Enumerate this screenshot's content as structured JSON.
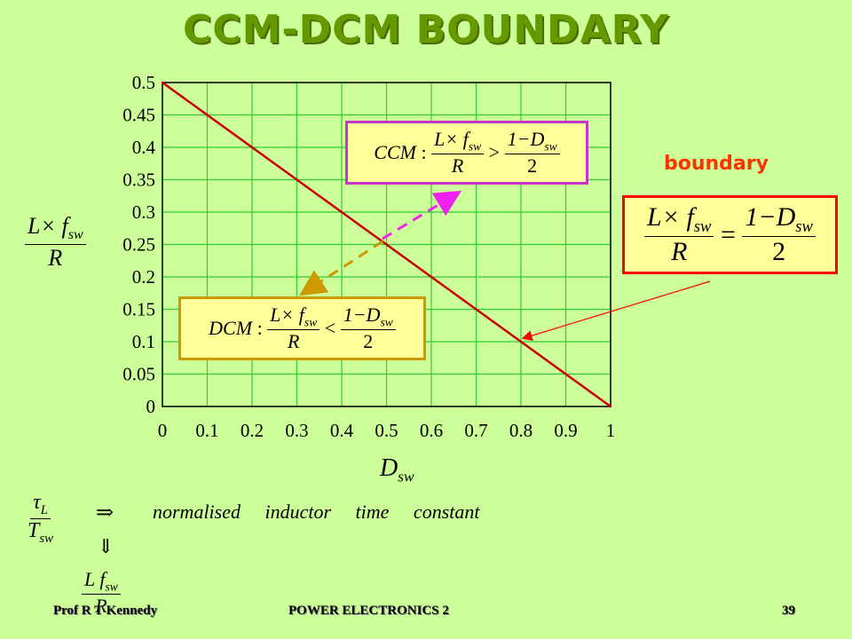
{
  "slide": {
    "title": "CCM-DCM BOUNDARY",
    "boundary_label": "boundary",
    "ccm_text": "CCM",
    "dcm_text": "DCM",
    "lhs_num": "L× f",
    "lhs_sub": "sw",
    "lhs_den": "R",
    "rhs_num": "1−D",
    "rhs_sub": "sw",
    "rhs_den": "2",
    "ccm_op": ">",
    "dcm_op": "<",
    "eq_op": "=",
    "ylabel_num": "L× f",
    "ylabel_sub": "sw",
    "ylabel_den": "R",
    "xlabel_main": "D",
    "xlabel_sub": "sw",
    "tau_num": "τ",
    "tau_num_sub": "L",
    "tau_den": "T",
    "tau_den_sub": "sw",
    "implies": "⇒",
    "definition": "normalised inductor time constant",
    "down_arrow": "⇓",
    "lf_num": "L f",
    "lf_sub": "sw",
    "lf_den": "R"
  },
  "footer": {
    "author": "Prof R T Kennedy",
    "course": "POWER ELECTRONICS 2",
    "page": "39"
  },
  "chart_data": {
    "type": "line",
    "x": [
      0,
      0.1,
      0.2,
      0.3,
      0.4,
      0.5,
      0.6,
      0.7,
      0.8,
      0.9,
      1
    ],
    "series": [
      {
        "values": [
          0.5,
          0.45,
          0.4,
          0.35,
          0.3,
          0.25,
          0.2,
          0.15,
          0.1,
          0.05,
          0
        ]
      }
    ],
    "xlim": [
      0,
      1
    ],
    "ylim": [
      0,
      0.5
    ],
    "xticks": [
      "0",
      "0.1",
      "0.2",
      "0.3",
      "0.4",
      "0.5",
      "0.6",
      "0.7",
      "0.8",
      "0.9",
      "1"
    ],
    "yticks": [
      "0",
      "0.05",
      "0.1",
      "0.15",
      "0.2",
      "0.25",
      "0.3",
      "0.35",
      "0.4",
      "0.45",
      "0.5"
    ],
    "grid": true,
    "line_color": "#cc0000",
    "grid_color": "#33cc33"
  }
}
